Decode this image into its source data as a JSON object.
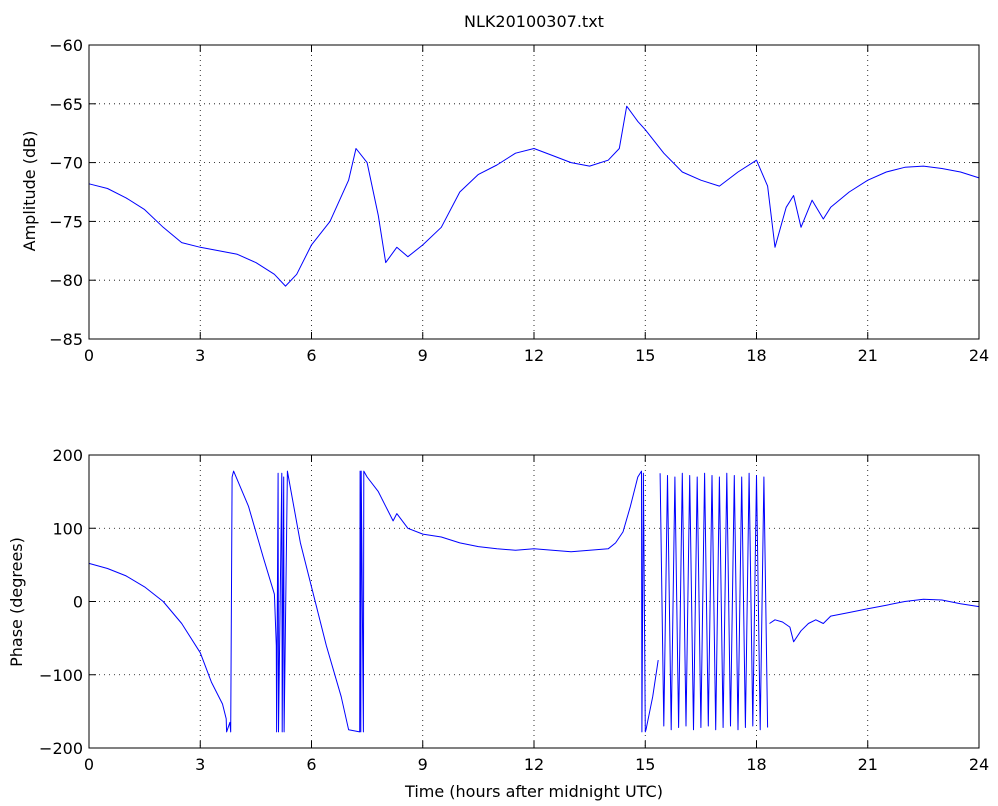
{
  "chart_data": [
    {
      "type": "line",
      "title": "NLK20100307.txt",
      "xlabel": "",
      "ylabel": "Amplitude (dB)",
      "xlim": [
        0,
        24
      ],
      "ylim": [
        -85,
        -60
      ],
      "xticks": [
        0,
        3,
        6,
        9,
        12,
        15,
        18,
        21,
        24
      ],
      "yticks": [
        -85,
        -80,
        -75,
        -70,
        -65,
        -60
      ],
      "xticklabels": [
        "0",
        "3",
        "6",
        "9",
        "12",
        "15",
        "18",
        "21",
        "24"
      ],
      "yticklabels": [
        "−85",
        "−80",
        "−75",
        "−70",
        "−65",
        "−60"
      ],
      "grid": true,
      "color": "#0000ff",
      "series": [
        {
          "x": [
            0,
            0.5,
            1,
            1.5,
            2,
            2.5,
            3,
            3.5,
            4,
            4.5,
            5,
            5.3,
            5.6,
            6,
            6.5,
            7,
            7.2,
            7.5,
            7.8,
            8,
            8.3,
            8.6,
            9,
            9.5,
            10,
            10.5,
            11,
            11.5,
            12,
            12.5,
            13,
            13.5,
            14,
            14.3,
            14.5,
            14.8,
            15,
            15.5,
            16,
            16.5,
            17,
            17.5,
            18,
            18.3,
            18.5,
            18.8,
            19,
            19.2,
            19.5,
            19.8,
            20,
            20.5,
            21,
            21.5,
            22,
            22.5,
            23,
            23.5,
            24
          ],
          "y": [
            -71.8,
            -72.2,
            -73.0,
            -74.0,
            -75.5,
            -76.8,
            -77.2,
            -77.5,
            -77.8,
            -78.5,
            -79.5,
            -80.5,
            -79.5,
            -77.0,
            -75.0,
            -71.5,
            -68.8,
            -70.0,
            -74.5,
            -78.5,
            -77.2,
            -78.0,
            -77.0,
            -75.5,
            -72.5,
            -71.0,
            -70.2,
            -69.2,
            -68.8,
            -69.4,
            -70.0,
            -70.3,
            -69.8,
            -68.8,
            -65.2,
            -66.5,
            -67.2,
            -69.2,
            -70.8,
            -71.5,
            -72.0,
            -70.8,
            -69.8,
            -72.0,
            -77.2,
            -73.8,
            -72.8,
            -75.5,
            -73.2,
            -74.8,
            -73.8,
            -72.5,
            -71.5,
            -70.8,
            -70.4,
            -70.3,
            -70.5,
            -70.8,
            -71.3
          ]
        }
      ]
    },
    {
      "type": "line",
      "title": "",
      "xlabel": "Time (hours after midnight UTC)",
      "ylabel": "Phase (degrees)",
      "xlim": [
        0,
        24
      ],
      "ylim": [
        -200,
        200
      ],
      "xticks": [
        0,
        3,
        6,
        9,
        12,
        15,
        18,
        21,
        24
      ],
      "yticks": [
        -200,
        -100,
        0,
        100,
        200
      ],
      "xticklabels": [
        "0",
        "3",
        "6",
        "9",
        "12",
        "15",
        "18",
        "21",
        "24"
      ],
      "yticklabels": [
        "−200",
        "−100",
        "0",
        "100",
        "200"
      ],
      "grid": true,
      "color": "#0000ff",
      "series": [
        {
          "x": [
            0,
            0.5,
            1,
            1.5,
            2,
            2.5,
            3,
            3.3,
            3.6,
            3.7,
            3.71,
            3.8,
            3.82,
            3.86,
            3.9,
            4.3,
            4.7,
            5.0,
            5.05,
            5.06,
            5.1,
            5.11,
            5.2,
            5.21,
            5.25,
            5.26,
            5.35,
            5.45,
            5.7,
            6.0,
            6.4,
            6.8,
            7.0,
            7.3,
            7.31,
            7.33,
            7.34,
            7.4,
            7.41,
            7.5,
            7.8,
            8.0,
            8.2,
            8.3,
            8.6,
            9,
            9.5,
            10,
            10.5,
            11,
            11.5,
            12,
            12.5,
            13,
            13.5,
            14,
            14.2,
            14.4,
            14.6,
            14.8,
            14.9,
            14.91,
            14.95,
            15.0,
            15.02,
            15.2,
            15.35
          ],
          "y": [
            52,
            45,
            35,
            20,
            0,
            -30,
            -70,
            -110,
            -140,
            -160,
            -178,
            -165,
            -178,
            170,
            178,
            130,
            60,
            10,
            -60,
            -178,
            175,
            -178,
            175,
            -178,
            170,
            -178,
            178,
            150,
            80,
            20,
            -60,
            -130,
            -175,
            -178,
            178,
            -178,
            178,
            -178,
            178,
            170,
            150,
            130,
            110,
            120,
            100,
            92,
            88,
            80,
            75,
            72,
            70,
            72,
            70,
            68,
            70,
            72,
            80,
            95,
            130,
            170,
            178,
            -178,
            175,
            -178,
            -175,
            -130,
            -80
          ]
        },
        {
          "x": [
            15.4,
            15.5,
            15.6,
            15.7,
            15.8,
            15.9,
            16.0,
            16.1,
            16.2,
            16.3,
            16.4,
            16.5,
            16.6,
            16.7,
            16.8,
            16.9,
            17.0,
            17.1,
            17.2,
            17.3,
            17.4,
            17.5,
            17.6,
            17.7,
            17.8,
            17.9,
            18.0,
            18.1,
            18.2,
            18.3
          ],
          "y": [
            175,
            -170,
            172,
            -175,
            170,
            -172,
            175,
            -170,
            172,
            -175,
            170,
            -172,
            175,
            -170,
            172,
            -175,
            170,
            -172,
            175,
            -170,
            172,
            -175,
            170,
            -172,
            175,
            -170,
            172,
            -175,
            170,
            -172
          ]
        },
        {
          "x": [
            18.35,
            18.5,
            18.7,
            18.9,
            19.0,
            19.2,
            19.4,
            19.6,
            19.8,
            20.0,
            20.5,
            21.0,
            21.5,
            22.0,
            22.5,
            23.0,
            23.5,
            24.0
          ],
          "y": [
            -30,
            -25,
            -28,
            -35,
            -55,
            -40,
            -30,
            -25,
            -30,
            -20,
            -15,
            -10,
            -5,
            0,
            3,
            2,
            -3,
            -7
          ]
        }
      ]
    }
  ]
}
